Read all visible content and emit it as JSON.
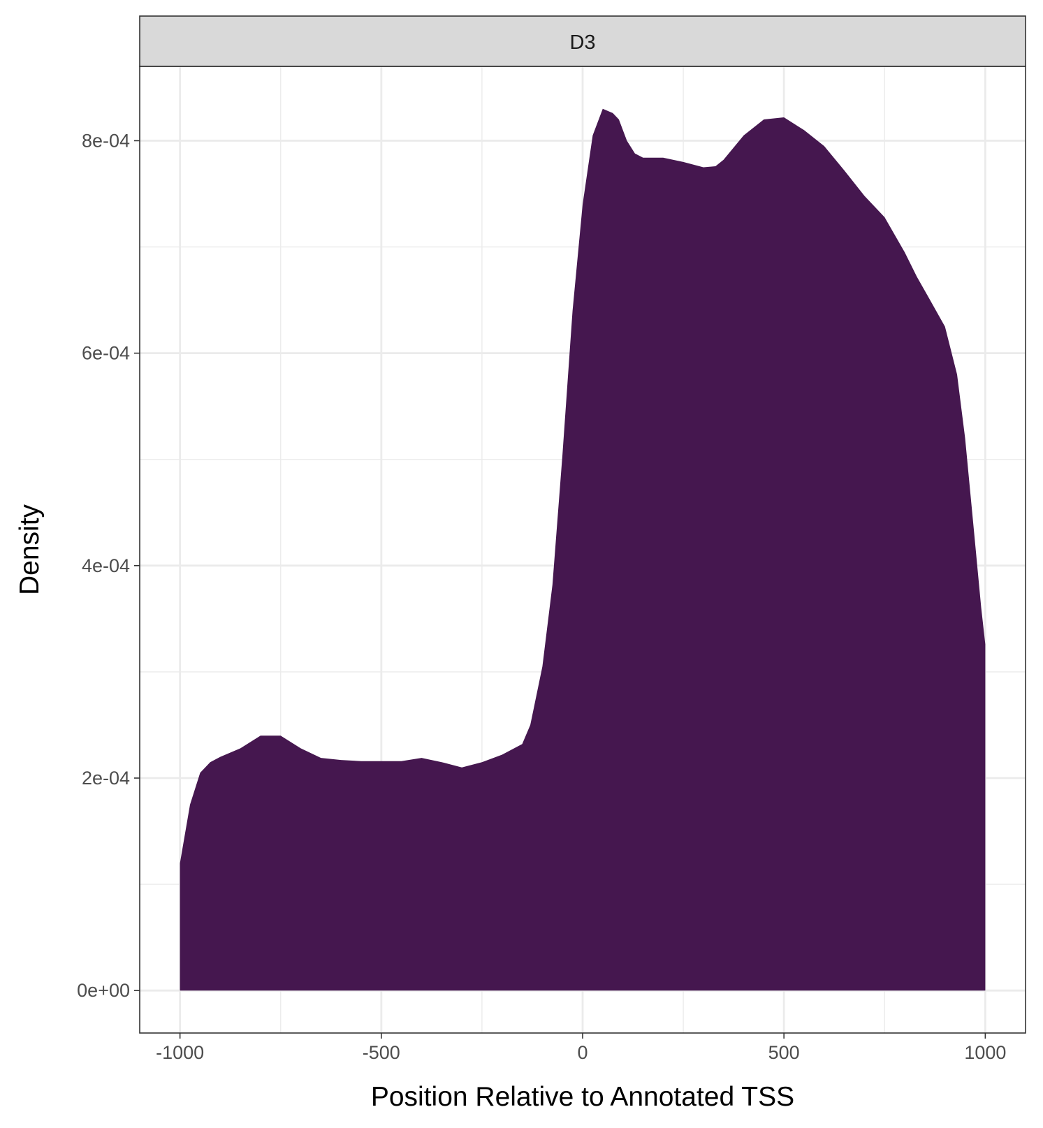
{
  "chart_data": {
    "type": "area",
    "facet_label": "D3",
    "xlabel": "Position Relative to Annotated TSS",
    "ylabel": "Density",
    "xlim": [
      -1100,
      1100
    ],
    "ylim": [
      -4e-05,
      0.00087
    ],
    "x_ticks": [
      -1000,
      -500,
      0,
      500,
      1000
    ],
    "x_tick_labels": [
      "-1000",
      "-500",
      "0",
      "500",
      "1000"
    ],
    "y_ticks": [
      0,
      0.0002,
      0.0004,
      0.0006,
      0.0008
    ],
    "y_tick_labels": [
      "0e+00",
      "2e-04",
      "4e-04",
      "6e-04",
      "8e-04"
    ],
    "grid": true,
    "fill_color": "#45174f",
    "series": [
      {
        "x": [
          -1000,
          -975,
          -950,
          -925,
          -900,
          -850,
          -800,
          -750,
          -700,
          -650,
          -600,
          -550,
          -500,
          -450,
          -400,
          -350,
          -300,
          -250,
          -200,
          -150,
          -130,
          -100,
          -75,
          -50,
          -25,
          0,
          25,
          50,
          75,
          90,
          110,
          130,
          150,
          180,
          200,
          250,
          300,
          330,
          350,
          400,
          450,
          500,
          550,
          600,
          650,
          700,
          750,
          800,
          830,
          860,
          900,
          930,
          950,
          970,
          990,
          1000
        ],
        "y": [
          0.00012,
          0.000175,
          0.000205,
          0.000215,
          0.00022,
          0.000228,
          0.00024,
          0.00024,
          0.000228,
          0.000219,
          0.000217,
          0.000216,
          0.000216,
          0.000216,
          0.000219,
          0.000215,
          0.00021,
          0.000215,
          0.000222,
          0.000232,
          0.00025,
          0.000305,
          0.000382,
          0.000505,
          0.00064,
          0.00074,
          0.000805,
          0.00083,
          0.000826,
          0.00082,
          0.0008,
          0.000788,
          0.000784,
          0.000784,
          0.000784,
          0.00078,
          0.000775,
          0.000776,
          0.000782,
          0.000805,
          0.00082,
          0.000822,
          0.00081,
          0.000795,
          0.000772,
          0.000748,
          0.000728,
          0.000695,
          0.000672,
          0.000652,
          0.000625,
          0.00058,
          0.00052,
          0.00044,
          0.00036,
          0.000326
        ]
      }
    ]
  }
}
